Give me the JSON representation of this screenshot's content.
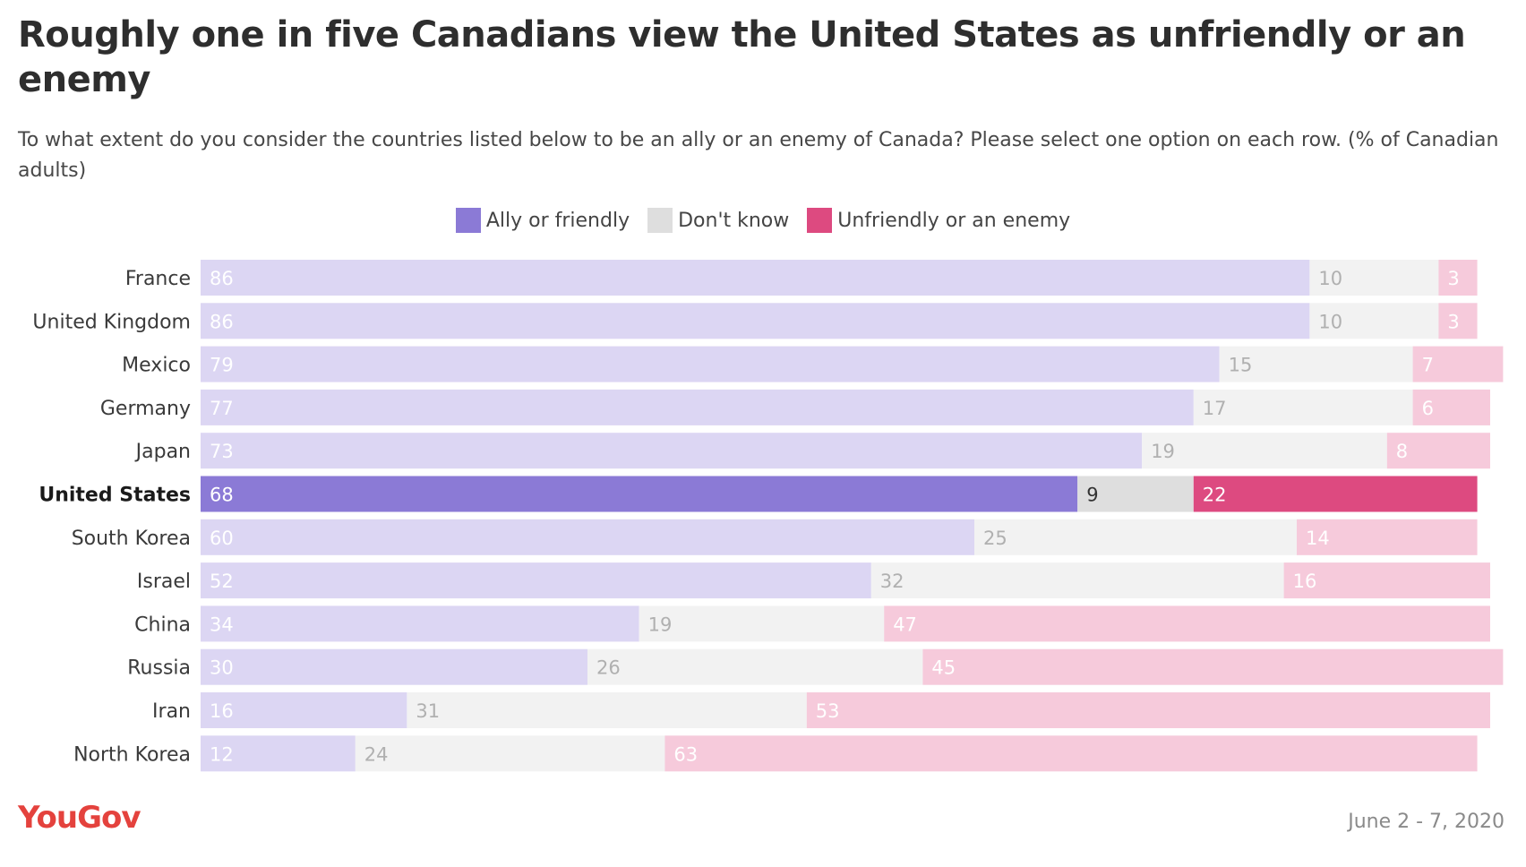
{
  "header": {
    "title": "Roughly one in five Canadians view the United States as unfriendly or an enemy",
    "subtitle": "To what extent do you consider the countries listed below to be an ally or an enemy of Canada? Please select one option on each row. (% of Canadian adults)"
  },
  "footer": {
    "brand": "YouGov",
    "date": "June 2 - 7, 2020"
  },
  "chart_data": {
    "type": "bar",
    "orientation": "horizontal",
    "stacked": true,
    "legend_position": "top-center",
    "highlighted_category": "United States",
    "colors": {
      "Ally or friendly": "#8b7ad6",
      "Ally or friendly (muted)": "#dcd6f3",
      "Don't know": "#dedede",
      "Don't know (muted)": "#f2f2f2",
      "Unfriendly or an enemy": "#dd4a80",
      "Unfriendly or an enemy (muted)": "#f6cadb"
    },
    "categories": [
      "France",
      "United Kingdom",
      "Mexico",
      "Germany",
      "Japan",
      "United States",
      "South Korea",
      "Israel",
      "China",
      "Russia",
      "Iran",
      "North Korea"
    ],
    "series": [
      {
        "name": "Ally or friendly",
        "values": [
          86,
          86,
          79,
          77,
          73,
          68,
          60,
          52,
          34,
          30,
          16,
          12
        ]
      },
      {
        "name": "Don't know",
        "values": [
          10,
          10,
          15,
          17,
          19,
          9,
          25,
          32,
          19,
          26,
          31,
          24
        ]
      },
      {
        "name": "Unfriendly or an enemy",
        "values": [
          3,
          3,
          7,
          6,
          8,
          22,
          14,
          16,
          47,
          45,
          53,
          63
        ]
      }
    ]
  }
}
